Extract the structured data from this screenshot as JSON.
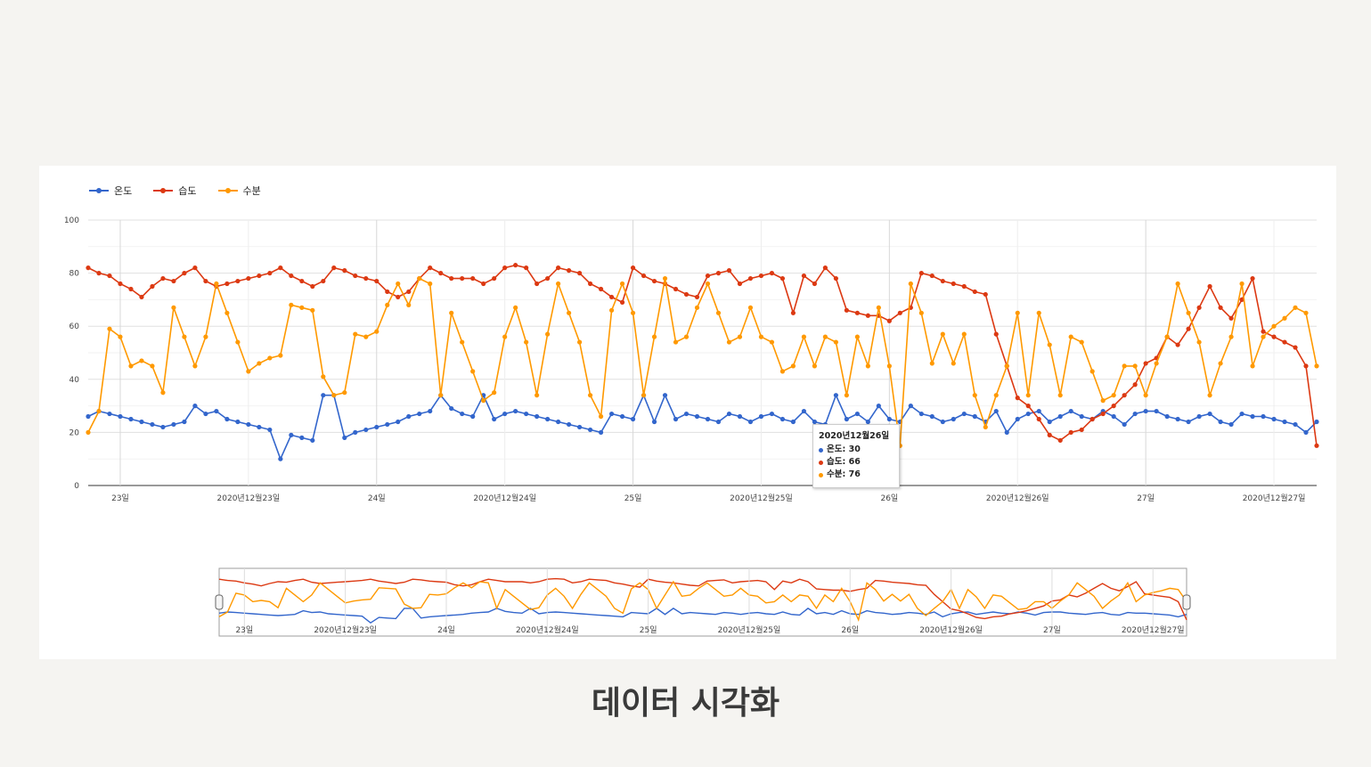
{
  "caption": "데이터 시각화",
  "tooltip": {
    "title": "2020년12월26일",
    "rows": [
      {
        "label": "온도: 30",
        "color": "#3366cc"
      },
      {
        "label": "습도: 66",
        "color": "#dc3912"
      },
      {
        "label": "수분: 76",
        "color": "#ff9900"
      }
    ]
  },
  "chart_data": {
    "type": "line",
    "legend_position": "top-left",
    "grid": true,
    "ylim": [
      0,
      100
    ],
    "y_ticks": [
      "0",
      "20",
      "40",
      "60",
      "80",
      "100"
    ],
    "xlim": [
      0,
      115
    ],
    "x_tick_labels": [
      {
        "x": 3,
        "label": "23일"
      },
      {
        "x": 15,
        "label": "2020년12월23일"
      },
      {
        "x": 27,
        "label": "24일"
      },
      {
        "x": 39,
        "label": "2020년12월24일"
      },
      {
        "x": 51,
        "label": "25일"
      },
      {
        "x": 63,
        "label": "2020년12월25일"
      },
      {
        "x": 75,
        "label": "26일"
      },
      {
        "x": 87,
        "label": "2020년12월26일"
      },
      {
        "x": 99,
        "label": "27일"
      },
      {
        "x": 111,
        "label": "2020년12월27일"
      }
    ],
    "series": [
      {
        "name": "온도",
        "color": "#3366cc",
        "x": [
          0,
          1,
          2,
          3,
          4,
          5,
          6,
          7,
          8,
          9,
          10,
          11,
          12,
          13,
          14,
          15,
          16,
          17,
          18,
          19,
          20,
          21,
          22,
          23,
          24,
          25,
          26,
          27,
          28,
          29,
          30,
          31,
          32,
          33,
          34,
          35,
          36,
          37,
          38,
          39,
          40,
          41,
          42,
          43,
          44,
          45,
          46,
          47,
          48,
          49,
          50,
          51,
          52,
          53,
          54,
          55,
          56,
          57,
          58,
          59,
          60,
          61,
          62,
          63,
          64,
          65,
          66,
          67,
          68,
          69,
          70,
          71,
          72,
          73,
          74,
          75,
          76,
          77,
          78,
          79,
          80,
          81,
          82,
          83,
          84,
          85,
          86,
          87,
          88,
          89,
          90,
          91,
          92,
          93,
          94,
          95,
          96,
          97,
          98,
          99,
          100,
          101,
          102,
          103,
          104,
          105,
          106,
          107,
          108,
          109,
          110,
          111,
          112,
          113,
          114,
          115
        ],
        "values": [
          26,
          28,
          27,
          26,
          25,
          24,
          23,
          22,
          23,
          24,
          30,
          27,
          28,
          25,
          24,
          23,
          22,
          21,
          10,
          19,
          18,
          17,
          34,
          34,
          18,
          20,
          21,
          22,
          23,
          24,
          26,
          27,
          28,
          34,
          29,
          27,
          26,
          34,
          25,
          27,
          28,
          27,
          26,
          25,
          24,
          23,
          22,
          21,
          20,
          27,
          26,
          25,
          34,
          24,
          34,
          25,
          27,
          26,
          25,
          24,
          27,
          26,
          24,
          26,
          27,
          25,
          24,
          28,
          24,
          23,
          34,
          25,
          27,
          24,
          30,
          25,
          24,
          30,
          27,
          26,
          24,
          25,
          27,
          26,
          24,
          28,
          20,
          25,
          27,
          28,
          24,
          26,
          28,
          26,
          25,
          28,
          26,
          23,
          27,
          28,
          28,
          26,
          25,
          24,
          26,
          27,
          24,
          23,
          27,
          26,
          26,
          25,
          24,
          23,
          20,
          24
        ]
      },
      {
        "name": "습도",
        "color": "#dc3912",
        "x": [
          0,
          1,
          2,
          3,
          4,
          5,
          6,
          7,
          8,
          9,
          10,
          11,
          12,
          13,
          14,
          15,
          16,
          17,
          18,
          19,
          20,
          21,
          22,
          23,
          24,
          25,
          26,
          27,
          28,
          29,
          30,
          31,
          32,
          33,
          34,
          35,
          36,
          37,
          38,
          39,
          40,
          41,
          42,
          43,
          44,
          45,
          46,
          47,
          48,
          49,
          50,
          51,
          52,
          53,
          54,
          55,
          56,
          57,
          58,
          59,
          60,
          61,
          62,
          63,
          64,
          65,
          66,
          67,
          68,
          69,
          70,
          71,
          72,
          73,
          74,
          75,
          76,
          77,
          78,
          79,
          80,
          81,
          82,
          83,
          84,
          85,
          86,
          87,
          88,
          89,
          90,
          91,
          92,
          93,
          94,
          95,
          96,
          97,
          98,
          99,
          100,
          101,
          102,
          103,
          104,
          105,
          106,
          107,
          108,
          109,
          110,
          111,
          112,
          113,
          114,
          115
        ],
        "values": [
          82,
          80,
          79,
          76,
          74,
          71,
          75,
          78,
          77,
          80,
          82,
          77,
          75,
          76,
          77,
          78,
          79,
          80,
          82,
          79,
          77,
          75,
          77,
          82,
          81,
          79,
          78,
          77,
          73,
          71,
          73,
          78,
          82,
          80,
          78,
          78,
          78,
          76,
          78,
          82,
          83,
          82,
          76,
          78,
          82,
          81,
          80,
          76,
          74,
          71,
          69,
          82,
          79,
          77,
          76,
          74,
          72,
          71,
          79,
          80,
          81,
          76,
          78,
          79,
          80,
          78,
          65,
          79,
          76,
          82,
          78,
          66,
          65,
          64,
          64,
          62,
          65,
          67,
          80,
          79,
          77,
          76,
          75,
          73,
          72,
          57,
          45,
          33,
          30,
          25,
          19,
          17,
          20,
          21,
          25,
          27,
          30,
          34,
          38,
          46,
          48,
          56,
          53,
          59,
          67,
          75,
          67,
          63,
          70,
          78,
          58,
          56,
          54,
          52,
          45,
          15
        ]
      },
      {
        "name": "수분",
        "color": "#ff9900",
        "x": [
          0,
          1,
          2,
          3,
          4,
          5,
          6,
          7,
          8,
          9,
          10,
          11,
          12,
          13,
          14,
          15,
          16,
          17,
          18,
          19,
          20,
          21,
          22,
          23,
          24,
          25,
          26,
          27,
          28,
          29,
          30,
          31,
          32,
          33,
          34,
          35,
          36,
          37,
          38,
          39,
          40,
          41,
          42,
          43,
          44,
          45,
          46,
          47,
          48,
          49,
          50,
          51,
          52,
          53,
          54,
          55,
          56,
          57,
          58,
          59,
          60,
          61,
          62,
          63,
          64,
          65,
          66,
          67,
          68,
          69,
          70,
          71,
          72,
          73,
          74,
          75,
          76,
          77,
          78,
          79,
          80,
          81,
          82,
          83,
          84,
          85,
          86,
          87,
          88,
          89,
          90,
          91,
          92,
          93,
          94,
          95,
          96,
          97,
          98,
          99,
          100,
          101,
          102,
          103,
          104,
          105,
          106,
          107,
          108,
          109,
          110,
          111,
          112,
          113,
          114,
          115
        ],
        "values": [
          20,
          28,
          59,
          56,
          45,
          47,
          45,
          35,
          67,
          56,
          45,
          56,
          76,
          65,
          54,
          43,
          46,
          48,
          49,
          68,
          67,
          66,
          41,
          34,
          35,
          57,
          56,
          58,
          68,
          76,
          68,
          78,
          76,
          34,
          65,
          54,
          43,
          32,
          35,
          56,
          67,
          54,
          34,
          57,
          76,
          65,
          54,
          34,
          26,
          66,
          76,
          65,
          34,
          56,
          78,
          54,
          56,
          67,
          76,
          65,
          54,
          56,
          67,
          56,
          54,
          43,
          45,
          56,
          45,
          56,
          54,
          34,
          56,
          45,
          67,
          45,
          15,
          76,
          65,
          46,
          57,
          46,
          57,
          34,
          22,
          34,
          45,
          65,
          34,
          65,
          53,
          34,
          56,
          54,
          43,
          32,
          34,
          45,
          45,
          34,
          46,
          56,
          76,
          65,
          54,
          34,
          46,
          56,
          76,
          45,
          56,
          60,
          63,
          67,
          65,
          45
        ]
      }
    ]
  },
  "navigator": {
    "tick_labels": [
      {
        "x": 3,
        "label": "23일"
      },
      {
        "x": 15,
        "label": "2020년12월23일"
      },
      {
        "x": 27,
        "label": "24일"
      },
      {
        "x": 39,
        "label": "2020년12월24일"
      },
      {
        "x": 51,
        "label": "25일"
      },
      {
        "x": 63,
        "label": "2020년12월25일"
      },
      {
        "x": 75,
        "label": "26일"
      },
      {
        "x": 87,
        "label": "2020년12월26일"
      },
      {
        "x": 99,
        "label": "27일"
      },
      {
        "x": 111,
        "label": "2020년12월27일"
      }
    ]
  }
}
